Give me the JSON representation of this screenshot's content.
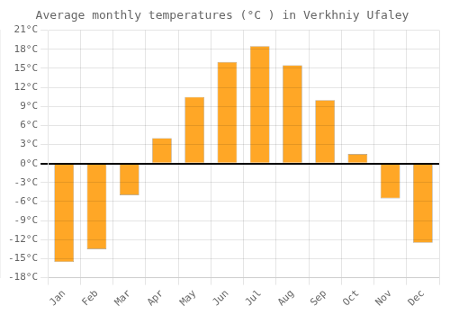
{
  "chart_data": {
    "type": "bar",
    "title": "Average monthly temperatures (°C ) in Verkhniy Ufaley",
    "categories": [
      "Jan",
      "Feb",
      "Mar",
      "Apr",
      "May",
      "Jun",
      "Jul",
      "Aug",
      "Sep",
      "Oct",
      "Nov",
      "Dec"
    ],
    "values": [
      -15.5,
      -13.5,
      -5.0,
      4.0,
      10.5,
      16.0,
      18.5,
      15.5,
      10.0,
      1.5,
      -5.5,
      -12.5
    ],
    "color": "#FFA726",
    "ylim": [
      -18,
      21
    ],
    "yticks": [
      {
        "value": -18,
        "label": "-18°C"
      },
      {
        "value": -15,
        "label": "-15°C"
      },
      {
        "value": -12,
        "label": "-12°C"
      },
      {
        "value": -9,
        "label": "-9°C"
      },
      {
        "value": -6,
        "label": "-6°C"
      },
      {
        "value": -3,
        "label": "-3°C"
      },
      {
        "value": 0,
        "label": "0°C"
      },
      {
        "value": 3,
        "label": "3°C"
      },
      {
        "value": 6,
        "label": "6°C"
      },
      {
        "value": 9,
        "label": "9°C"
      },
      {
        "value": 12,
        "label": "12°C"
      },
      {
        "value": 15,
        "label": "15°C"
      },
      {
        "value": 18,
        "label": "18°C"
      },
      {
        "value": 21,
        "label": "21°C"
      }
    ],
    "grid": true
  }
}
